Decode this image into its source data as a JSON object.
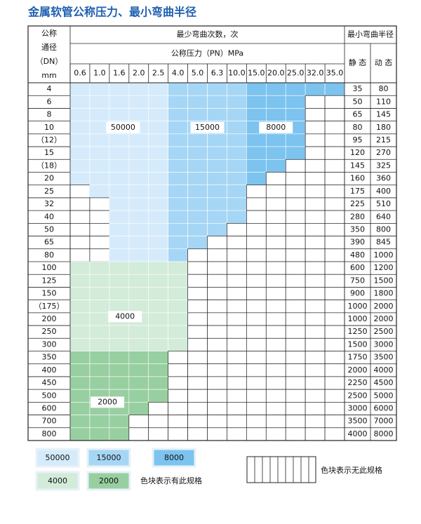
{
  "title": "金属软管公称压力、最小弯曲半径",
  "header": {
    "dn": [
      "公称",
      "通径",
      "（DN）",
      "mm"
    ],
    "bend_count": "最少弯曲次数，次",
    "pressure": "公称压力（PN）MPa",
    "pressures": [
      "0.6",
      "1.0",
      "1.6",
      "2.0",
      "2.5",
      "4.0",
      "5.0",
      "6.3",
      "10.0",
      "15.0",
      "20.0",
      "25.0",
      "32.0",
      "35.0"
    ],
    "radius": "最小弯曲半径",
    "static": "静 态",
    "dynamic": "动 态"
  },
  "zones": [
    {
      "label": "50000",
      "color": "#d5ebfb"
    },
    {
      "label": "15000",
      "color": "#a6d6f5"
    },
    {
      "label": "8000",
      "color": "#7cc3ef"
    },
    {
      "label": "4000",
      "color": "#d3ebd9"
    },
    {
      "label": "2000",
      "color": "#98cfa1"
    }
  ],
  "rows": [
    {
      "dn": "4",
      "cells": [
        "#d5ebfb",
        "#d5ebfb",
        "#d5ebfb",
        "#d5ebfb",
        "#d5ebfb",
        "#a6d6f5",
        "#a6d6f5",
        "#a6d6f5",
        "#a6d6f5",
        "#7cc3ef",
        "#7cc3ef",
        "#7cc3ef",
        "#7cc3ef",
        "#7cc3ef"
      ],
      "static": 35,
      "dynamic": 80
    },
    {
      "dn": "6",
      "cells": [
        "#d5ebfb",
        "#d5ebfb",
        "#d5ebfb",
        "#d5ebfb",
        "#d5ebfb",
        "#a6d6f5",
        "#a6d6f5",
        "#a6d6f5",
        "#a6d6f5",
        "#7cc3ef",
        "#7cc3ef",
        "#7cc3ef",
        null,
        null
      ],
      "static": 50,
      "dynamic": 110
    },
    {
      "dn": "8",
      "cells": [
        "#d5ebfb",
        "#d5ebfb",
        "#d5ebfb",
        "#d5ebfb",
        "#d5ebfb",
        "#a6d6f5",
        "#a6d6f5",
        "#a6d6f5",
        "#a6d6f5",
        "#7cc3ef",
        "#7cc3ef",
        "#7cc3ef",
        null,
        null
      ],
      "static": 65,
      "dynamic": 145
    },
    {
      "dn": "10",
      "cells": [
        "#d5ebfb",
        "#d5ebfb",
        "#d5ebfb",
        "#d5ebfb",
        "#d5ebfb",
        "#a6d6f5",
        "#a6d6f5",
        "#a6d6f5",
        "#a6d6f5",
        "#7cc3ef",
        "#7cc3ef",
        "#7cc3ef",
        null,
        null
      ],
      "static": 80,
      "dynamic": 180
    },
    {
      "dn": "（12）",
      "cells": [
        "#d5ebfb",
        "#d5ebfb",
        "#d5ebfb",
        "#d5ebfb",
        "#d5ebfb",
        "#a6d6f5",
        "#a6d6f5",
        "#a6d6f5",
        "#a6d6f5",
        "#7cc3ef",
        "#7cc3ef",
        "#7cc3ef",
        null,
        null
      ],
      "static": 95,
      "dynamic": 215
    },
    {
      "dn": "15",
      "cells": [
        "#d5ebfb",
        "#d5ebfb",
        "#d5ebfb",
        "#d5ebfb",
        "#d5ebfb",
        "#a6d6f5",
        "#a6d6f5",
        "#a6d6f5",
        "#a6d6f5",
        "#7cc3ef",
        "#7cc3ef",
        "#7cc3ef",
        null,
        null
      ],
      "static": 120,
      "dynamic": 270
    },
    {
      "dn": "（18）",
      "cells": [
        "#d5ebfb",
        "#d5ebfb",
        "#d5ebfb",
        "#d5ebfb",
        "#d5ebfb",
        "#a6d6f5",
        "#a6d6f5",
        "#a6d6f5",
        "#a6d6f5",
        "#7cc3ef",
        "#7cc3ef",
        null,
        null,
        null
      ],
      "static": 145,
      "dynamic": 325
    },
    {
      "dn": "20",
      "cells": [
        "#d5ebfb",
        "#d5ebfb",
        "#d5ebfb",
        "#d5ebfb",
        "#d5ebfb",
        "#a6d6f5",
        "#a6d6f5",
        "#a6d6f5",
        "#a6d6f5",
        "#7cc3ef",
        null,
        null,
        null,
        null
      ],
      "static": 160,
      "dynamic": 360
    },
    {
      "dn": "25",
      "cells": [
        null,
        "#d5ebfb",
        "#d5ebfb",
        "#d5ebfb",
        "#d5ebfb",
        "#a6d6f5",
        "#a6d6f5",
        "#a6d6f5",
        "#a6d6f5",
        null,
        null,
        null,
        null,
        null
      ],
      "static": 175,
      "dynamic": 400
    },
    {
      "dn": "32",
      "cells": [
        null,
        null,
        "#d5ebfb",
        "#d5ebfb",
        "#d5ebfb",
        "#a6d6f5",
        "#a6d6f5",
        "#a6d6f5",
        "#a6d6f5",
        null,
        null,
        null,
        null,
        null
      ],
      "static": 225,
      "dynamic": 510
    },
    {
      "dn": "40",
      "cells": [
        null,
        null,
        "#d5ebfb",
        "#d5ebfb",
        "#d5ebfb",
        "#a6d6f5",
        "#a6d6f5",
        "#a6d6f5",
        "#a6d6f5",
        null,
        null,
        null,
        null,
        null
      ],
      "static": 280,
      "dynamic": 640
    },
    {
      "dn": "50",
      "cells": [
        null,
        null,
        "#d5ebfb",
        "#d5ebfb",
        "#d5ebfb",
        "#a6d6f5",
        "#a6d6f5",
        "#a6d6f5",
        null,
        null,
        null,
        null,
        null,
        null
      ],
      "static": 350,
      "dynamic": 800
    },
    {
      "dn": "65",
      "cells": [
        null,
        null,
        "#d5ebfb",
        "#d5ebfb",
        "#d5ebfb",
        "#a6d6f5",
        "#a6d6f5",
        null,
        null,
        null,
        null,
        null,
        null,
        null
      ],
      "static": 390,
      "dynamic": 845
    },
    {
      "dn": "80",
      "cells": [
        null,
        null,
        "#d5ebfb",
        "#d5ebfb",
        "#d5ebfb",
        "#a6d6f5",
        null,
        null,
        null,
        null,
        null,
        null,
        null,
        null
      ],
      "static": 480,
      "dynamic": 1000
    },
    {
      "dn": "100",
      "cells": [
        "#d3ebd9",
        "#d3ebd9",
        "#d3ebd9",
        "#d3ebd9",
        "#d3ebd9",
        "#d3ebd9",
        null,
        null,
        null,
        null,
        null,
        null,
        null,
        null
      ],
      "static": 600,
      "dynamic": 1200
    },
    {
      "dn": "125",
      "cells": [
        "#d3ebd9",
        "#d3ebd9",
        "#d3ebd9",
        "#d3ebd9",
        "#d3ebd9",
        "#d3ebd9",
        null,
        null,
        null,
        null,
        null,
        null,
        null,
        null
      ],
      "static": 750,
      "dynamic": 1500
    },
    {
      "dn": "150",
      "cells": [
        "#d3ebd9",
        "#d3ebd9",
        "#d3ebd9",
        "#d3ebd9",
        "#d3ebd9",
        "#d3ebd9",
        null,
        null,
        null,
        null,
        null,
        null,
        null,
        null
      ],
      "static": 900,
      "dynamic": 1800
    },
    {
      "dn": "（175）",
      "cells": [
        "#d3ebd9",
        "#d3ebd9",
        "#d3ebd9",
        "#d3ebd9",
        "#d3ebd9",
        "#d3ebd9",
        null,
        null,
        null,
        null,
        null,
        null,
        null,
        null
      ],
      "static": 1000,
      "dynamic": 2000
    },
    {
      "dn": "200",
      "cells": [
        "#d3ebd9",
        "#d3ebd9",
        "#d3ebd9",
        "#d3ebd9",
        "#d3ebd9",
        "#d3ebd9",
        null,
        null,
        null,
        null,
        null,
        null,
        null,
        null
      ],
      "static": 1000,
      "dynamic": 2000
    },
    {
      "dn": "250",
      "cells": [
        "#d3ebd9",
        "#d3ebd9",
        "#d3ebd9",
        "#d3ebd9",
        "#d3ebd9",
        "#d3ebd9",
        null,
        null,
        null,
        null,
        null,
        null,
        null,
        null
      ],
      "static": 1250,
      "dynamic": 2500
    },
    {
      "dn": "300",
      "cells": [
        "#d3ebd9",
        "#d3ebd9",
        "#d3ebd9",
        "#d3ebd9",
        "#d3ebd9",
        "#d3ebd9",
        null,
        null,
        null,
        null,
        null,
        null,
        null,
        null
      ],
      "static": 1500,
      "dynamic": 3000
    },
    {
      "dn": "350",
      "cells": [
        "#98cfa1",
        "#98cfa1",
        "#98cfa1",
        "#98cfa1",
        "#98cfa1",
        null,
        null,
        null,
        null,
        null,
        null,
        null,
        null,
        null
      ],
      "static": 1750,
      "dynamic": 3500
    },
    {
      "dn": "400",
      "cells": [
        "#98cfa1",
        "#98cfa1",
        "#98cfa1",
        "#98cfa1",
        "#98cfa1",
        null,
        null,
        null,
        null,
        null,
        null,
        null,
        null,
        null
      ],
      "static": 2000,
      "dynamic": 4000
    },
    {
      "dn": "450",
      "cells": [
        "#98cfa1",
        "#98cfa1",
        "#98cfa1",
        "#98cfa1",
        "#98cfa1",
        null,
        null,
        null,
        null,
        null,
        null,
        null,
        null,
        null
      ],
      "static": 2250,
      "dynamic": 4500
    },
    {
      "dn": "500",
      "cells": [
        "#98cfa1",
        "#98cfa1",
        "#98cfa1",
        "#98cfa1",
        "#98cfa1",
        null,
        null,
        null,
        null,
        null,
        null,
        null,
        null,
        null
      ],
      "static": 2500,
      "dynamic": 5000
    },
    {
      "dn": "600",
      "cells": [
        "#98cfa1",
        "#98cfa1",
        "#98cfa1",
        "#98cfa1",
        null,
        null,
        null,
        null,
        null,
        null,
        null,
        null,
        null,
        null
      ],
      "static": 3000,
      "dynamic": 6000
    },
    {
      "dn": "700",
      "cells": [
        "#98cfa1",
        "#98cfa1",
        "#98cfa1",
        null,
        null,
        null,
        null,
        null,
        null,
        null,
        null,
        null,
        null,
        null
      ],
      "static": 3500,
      "dynamic": 7000
    },
    {
      "dn": "800",
      "cells": [
        "#98cfa1",
        "#98cfa1",
        "#98cfa1",
        null,
        null,
        null,
        null,
        null,
        null,
        null,
        null,
        null,
        null,
        null
      ],
      "static": 4000,
      "dynamic": 8000
    }
  ],
  "legend": {
    "present": "色块表示有此规格",
    "absent": "色块表示无此规格"
  }
}
